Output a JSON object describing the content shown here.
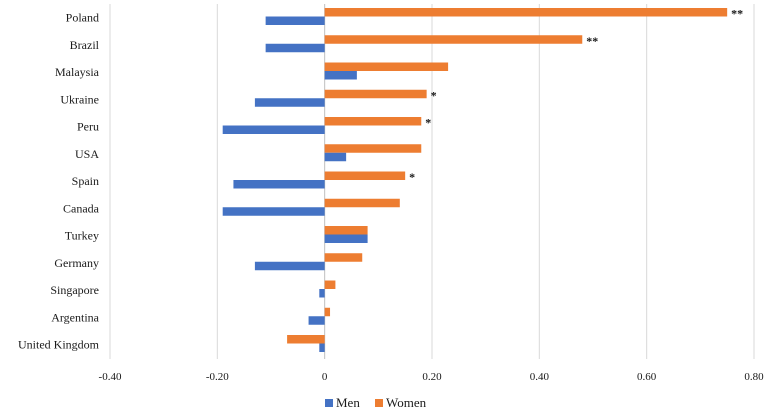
{
  "chart_data": {
    "type": "bar",
    "orientation": "horizontal",
    "categories": [
      "Poland",
      "Brazil",
      "Malaysia",
      "Ukraine",
      "Peru",
      "USA",
      "Spain",
      "Canada",
      "Turkey",
      "Germany",
      "Singapore",
      "Argentina",
      "United Kingdom"
    ],
    "series": [
      {
        "name": "Women",
        "color": "#ed7d31",
        "values": [
          0.75,
          0.48,
          0.23,
          0.19,
          0.18,
          0.18,
          0.15,
          0.14,
          0.08,
          0.07,
          0.02,
          0.01,
          -0.07
        ],
        "significance": [
          "**",
          "**",
          "",
          "*",
          "*",
          "",
          "*",
          "",
          "",
          "",
          "",
          "",
          ""
        ]
      },
      {
        "name": "Men",
        "color": "#4472c4",
        "values": [
          -0.11,
          -0.11,
          0.06,
          -0.13,
          -0.19,
          0.04,
          -0.17,
          -0.19,
          0.08,
          -0.13,
          -0.01,
          -0.03,
          -0.01
        ]
      }
    ],
    "x_ticks": [
      "-0.40",
      "-0.20",
      "0",
      "0.20",
      "0.40",
      "0.60",
      "0.80"
    ],
    "xlim": [
      -0.4,
      0.8
    ],
    "grid": "vertical",
    "legend": {
      "position": "bottom",
      "items": [
        "Men",
        "Women"
      ]
    }
  }
}
